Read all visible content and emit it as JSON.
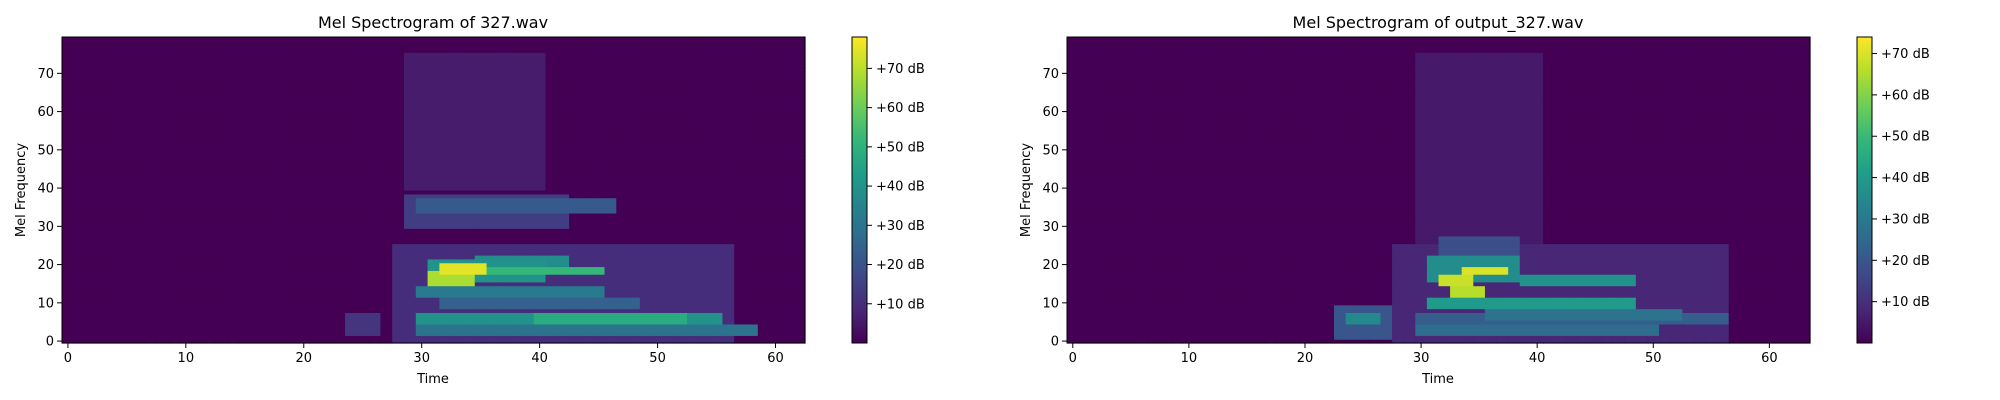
{
  "colormap": [
    "#440154",
    "#482878",
    "#3e4989",
    "#31688e",
    "#26828e",
    "#1f9e89",
    "#35b779",
    "#6ece58",
    "#b5de2b",
    "#fde725"
  ],
  "chart_data": [
    {
      "type": "heatmap",
      "title": "Mel Spectrogram of 327.wav",
      "xlabel": "Time",
      "ylabel": "Mel Frequency",
      "xlim": [
        -0.5,
        62.5
      ],
      "ylim": [
        -0.5,
        79.5
      ],
      "xticks": [
        "0",
        "10",
        "20",
        "30",
        "40",
        "50",
        "60"
      ],
      "yticks": [
        "0",
        "10",
        "20",
        "30",
        "40",
        "50",
        "60",
        "70"
      ],
      "colorbar": {
        "label_unit": "dB",
        "vmin": 0,
        "vmax": 78,
        "ticks": [
          "+10 dB",
          "+20 dB",
          "+30 dB",
          "+40 dB",
          "+50 dB",
          "+60 dB",
          "+70 dB"
        ]
      },
      "regions": [
        {
          "t": [
            24,
            26
          ],
          "m": [
            2,
            7
          ],
          "db": 12
        },
        {
          "t": [
            28,
            56
          ],
          "m": [
            0,
            25
          ],
          "db": 10
        },
        {
          "t": [
            29,
            42
          ],
          "m": [
            30,
            38
          ],
          "db": 14
        },
        {
          "t": [
            30,
            46
          ],
          "m": [
            34,
            37
          ],
          "db": 22
        },
        {
          "t": [
            29,
            40
          ],
          "m": [
            40,
            75
          ],
          "db": 6
        },
        {
          "t": [
            31,
            40
          ],
          "m": [
            16,
            21
          ],
          "db": 40
        },
        {
          "t": [
            31,
            34
          ],
          "m": [
            15,
            18
          ],
          "db": 68
        },
        {
          "t": [
            32,
            35
          ],
          "m": [
            18,
            20
          ],
          "db": 75
        },
        {
          "t": [
            36,
            45
          ],
          "m": [
            18,
            19
          ],
          "db": 52
        },
        {
          "t": [
            35,
            42
          ],
          "m": [
            20,
            22
          ],
          "db": 38
        },
        {
          "t": [
            30,
            45
          ],
          "m": [
            12,
            14
          ],
          "db": 32
        },
        {
          "t": [
            30,
            55
          ],
          "m": [
            5,
            7
          ],
          "db": 40
        },
        {
          "t": [
            40,
            52
          ],
          "m": [
            5,
            7
          ],
          "db": 48
        },
        {
          "t": [
            30,
            58
          ],
          "m": [
            2,
            4
          ],
          "db": 30
        },
        {
          "t": [
            32,
            48
          ],
          "m": [
            9,
            11
          ],
          "db": 24
        }
      ]
    },
    {
      "type": "heatmap",
      "title": "Mel Spectrogram of output_327.wav",
      "xlabel": "Time",
      "ylabel": "Mel Frequency",
      "xlim": [
        -0.5,
        63.5
      ],
      "ylim": [
        -0.5,
        79.5
      ],
      "xticks": [
        "0",
        "10",
        "20",
        "30",
        "40",
        "50",
        "60"
      ],
      "yticks": [
        "0",
        "10",
        "20",
        "30",
        "40",
        "50",
        "60",
        "70"
      ],
      "colorbar": {
        "label_unit": "dB",
        "vmin": 0,
        "vmax": 74,
        "ticks": [
          "+10 dB",
          "+20 dB",
          "+30 dB",
          "+40 dB",
          "+50 dB",
          "+60 dB",
          "+70 dB"
        ]
      },
      "regions": [
        {
          "t": [
            23,
            27
          ],
          "m": [
            1,
            9
          ],
          "db": 20
        },
        {
          "t": [
            24,
            26
          ],
          "m": [
            5,
            7
          ],
          "db": 35
        },
        {
          "t": [
            28,
            56
          ],
          "m": [
            0,
            25
          ],
          "db": 8
        },
        {
          "t": [
            30,
            40
          ],
          "m": [
            25,
            75
          ],
          "db": 5
        },
        {
          "t": [
            32,
            38
          ],
          "m": [
            22,
            27
          ],
          "db": 18
        },
        {
          "t": [
            31,
            38
          ],
          "m": [
            16,
            22
          ],
          "db": 36
        },
        {
          "t": [
            32,
            34
          ],
          "m": [
            15,
            17
          ],
          "db": 68
        },
        {
          "t": [
            34,
            37
          ],
          "m": [
            18,
            19
          ],
          "db": 70
        },
        {
          "t": [
            33,
            35
          ],
          "m": [
            12,
            14
          ],
          "db": 66
        },
        {
          "t": [
            31,
            48
          ],
          "m": [
            9,
            11
          ],
          "db": 40
        },
        {
          "t": [
            39,
            48
          ],
          "m": [
            15,
            17
          ],
          "db": 38
        },
        {
          "t": [
            30,
            56
          ],
          "m": [
            5,
            7
          ],
          "db": 22
        },
        {
          "t": [
            30,
            50
          ],
          "m": [
            2,
            4
          ],
          "db": 26
        },
        {
          "t": [
            36,
            52
          ],
          "m": [
            6,
            8
          ],
          "db": 28
        }
      ]
    }
  ]
}
